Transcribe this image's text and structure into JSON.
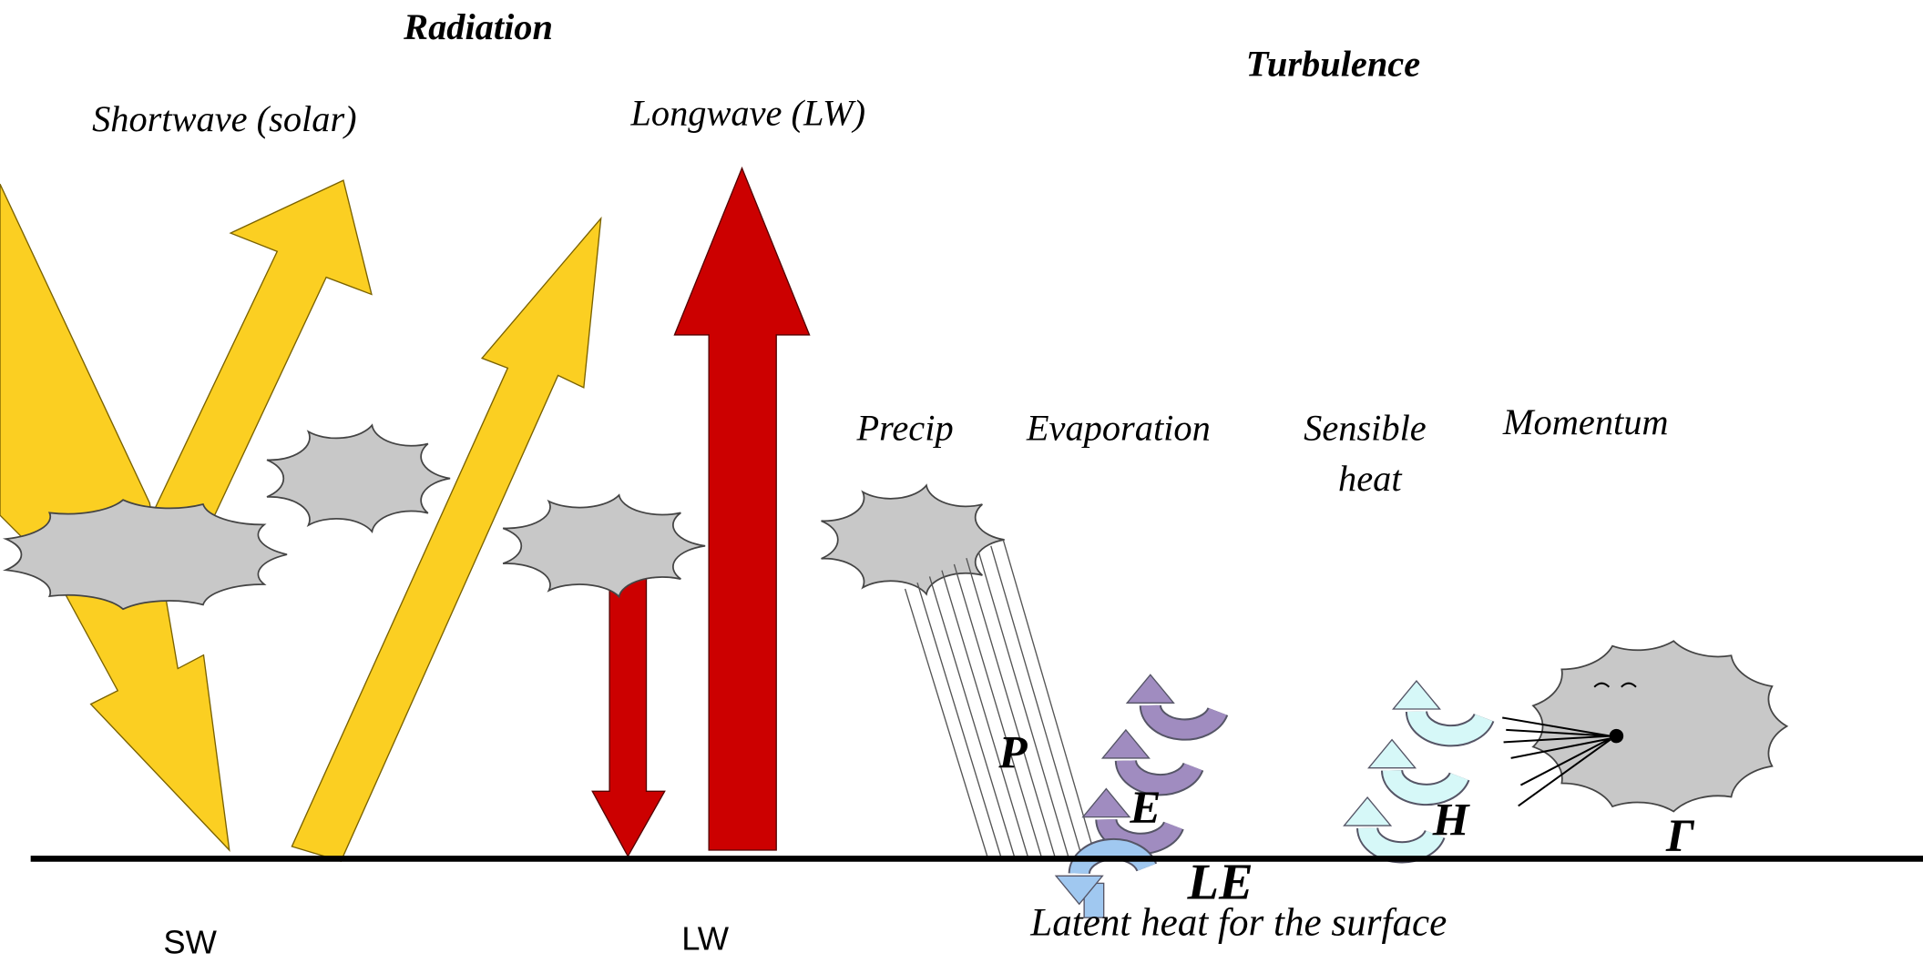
{
  "titles": {
    "radiation": "Radiation",
    "turbulence": "Turbulence"
  },
  "labels": {
    "shortwave": "Shortwave (solar)",
    "longwave": "Longwave (LW)",
    "precip": "Precip",
    "evaporation": "Evaporation",
    "sensible_heat": [
      "Sensible",
      "heat"
    ],
    "momentum": "Momentum",
    "latent_heat": "Latent heat for the surface"
  },
  "symbols": {
    "p": "P",
    "e": "E",
    "h": "H",
    "le": "LE",
    "gamma": "Γ"
  },
  "bottom": {
    "sw": "SW",
    "lw": "LW"
  }
}
